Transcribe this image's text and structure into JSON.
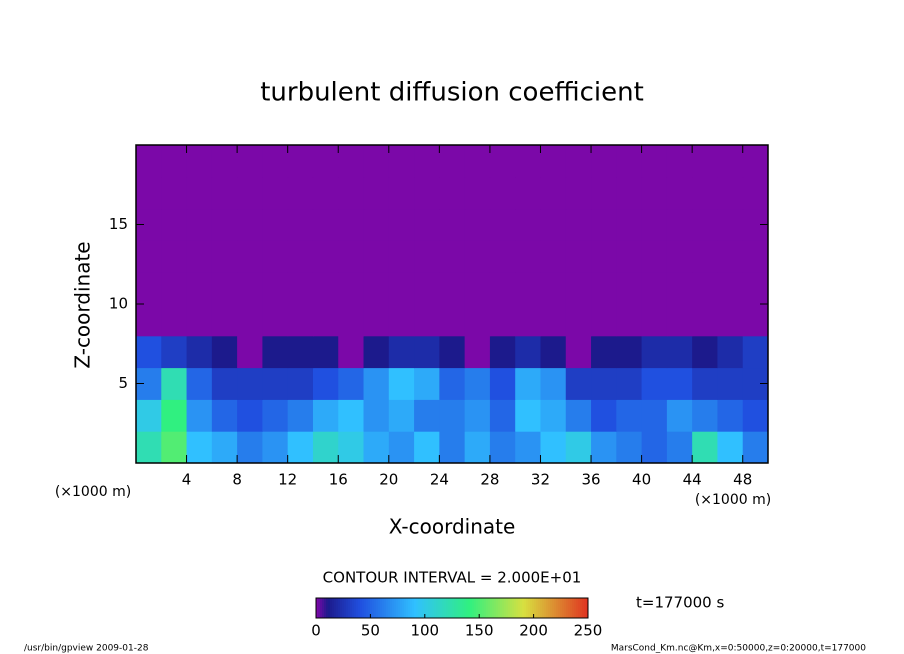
{
  "chart_data": {
    "type": "heatmap",
    "title": "turbulent diffusion coefficient",
    "xlabel": "X-coordinate",
    "ylabel": "Z-coordinate",
    "x_units": "(×1000 m)",
    "y_units": "(×1000 m)",
    "xlim": [
      0,
      50
    ],
    "ylim": [
      0,
      20
    ],
    "xticks": [
      4,
      8,
      12,
      16,
      20,
      24,
      28,
      32,
      36,
      40,
      44,
      48
    ],
    "yticks": [
      5,
      10,
      15
    ],
    "z": [
      [
        120,
        150,
        90,
        80,
        60,
        70,
        90,
        110,
        100,
        80,
        70,
        90,
        60,
        80,
        60,
        70,
        90,
        100,
        70,
        60,
        50,
        60,
        120,
        90,
        60
      ],
      [
        100,
        140,
        70,
        50,
        40,
        50,
        60,
        80,
        90,
        70,
        80,
        60,
        60,
        70,
        50,
        90,
        80,
        60,
        40,
        50,
        50,
        70,
        60,
        50,
        40
      ],
      [
        60,
        120,
        50,
        30,
        30,
        30,
        30,
        40,
        50,
        70,
        90,
        80,
        50,
        60,
        40,
        80,
        70,
        30,
        30,
        30,
        40,
        40,
        30,
        30,
        30
      ],
      [
        40,
        30,
        20,
        10,
        0,
        10,
        10,
        10,
        0,
        10,
        20,
        20,
        10,
        0,
        10,
        20,
        10,
        0,
        10,
        10,
        20,
        20,
        10,
        20,
        30
      ],
      [
        0,
        0,
        0,
        0,
        0,
        0,
        0,
        0,
        0,
        0,
        0,
        0,
        0,
        0,
        0,
        0,
        0,
        0,
        0,
        0,
        0,
        0,
        0,
        0,
        0
      ],
      [
        0,
        0,
        0,
        0,
        0,
        0,
        0,
        0,
        0,
        0,
        0,
        0,
        0,
        0,
        0,
        0,
        0,
        0,
        0,
        0,
        0,
        0,
        0,
        0,
        0
      ],
      [
        0,
        0,
        0,
        0,
        0,
        0,
        0,
        0,
        0,
        0,
        0,
        0,
        0,
        0,
        0,
        0,
        0,
        0,
        0,
        0,
        0,
        0,
        0,
        0,
        0
      ],
      [
        0,
        0,
        0,
        0,
        0,
        0,
        0,
        0,
        0,
        0,
        0,
        0,
        0,
        0,
        0,
        0,
        0,
        0,
        0,
        0,
        0,
        0,
        0,
        0,
        0
      ],
      [
        0,
        0,
        0,
        0,
        0,
        0,
        0,
        0,
        0,
        0,
        0,
        0,
        0,
        0,
        0,
        0,
        0,
        0,
        0,
        0,
        0,
        0,
        0,
        0,
        0
      ],
      [
        0,
        0,
        0,
        0,
        0,
        0,
        0,
        0,
        0,
        0,
        0,
        0,
        0,
        0,
        0,
        0,
        0,
        0,
        0,
        0,
        0,
        0,
        0,
        0,
        0
      ]
    ],
    "colormap": [
      [
        0,
        "#7b08a8"
      ],
      [
        10,
        "#1c1a8c"
      ],
      [
        40,
        "#2050e0"
      ],
      [
        90,
        "#30c0ff"
      ],
      [
        140,
        "#30f080"
      ],
      [
        190,
        "#d8e040"
      ],
      [
        250,
        "#e03020"
      ]
    ],
    "clim": [
      0,
      250
    ],
    "cticks": [
      0,
      50,
      100,
      150,
      200,
      250
    ],
    "contour_interval": "CONTOUR INTERVAL = 2.000E+01",
    "time_label": "t=177000 s",
    "footer_left": "/usr/bin/gpview  2009-01-28",
    "footer_right": "MarsCond_Km.nc@Km,x=0:50000,z=0:20000,t=177000"
  }
}
